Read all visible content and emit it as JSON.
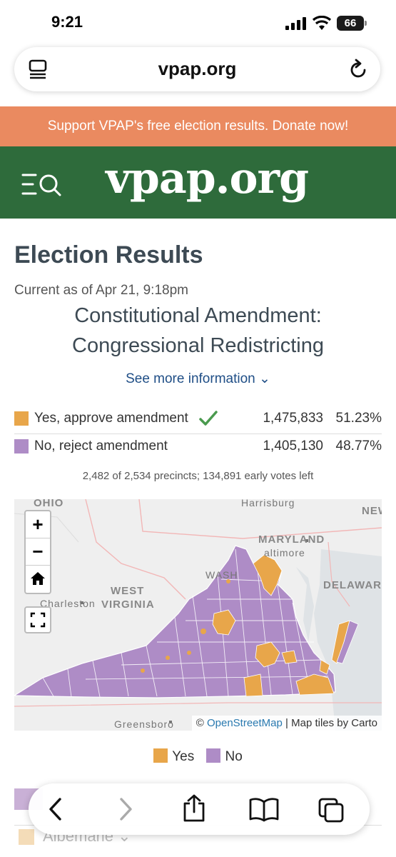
{
  "status_bar": {
    "time": "9:21",
    "battery": "66"
  },
  "browser": {
    "url": "vpap.org"
  },
  "banner": {
    "text": "Support VPAP's free election results. Donate now!"
  },
  "site": {
    "logo": "vpap.org"
  },
  "page": {
    "heading": "Election Results",
    "as_of": "Current as of Apr 21, 9:18pm",
    "race_title_line1": "Constitutional Amendment:",
    "race_title_line2": "Congressional Redistricting",
    "see_more": "See more information ⌄"
  },
  "results": [
    {
      "label": "Yes, approve amendment",
      "votes": "1,475,833",
      "pct": "51.23%",
      "color": "#e8a64a",
      "winner": true
    },
    {
      "label": "No, reject amendment",
      "votes": "1,405,130",
      "pct": "48.77%",
      "color": "#ae8cc6",
      "winner": false
    }
  ],
  "precincts_text": "2,482 of 2,534 precincts; 134,891 early votes left",
  "map": {
    "labels": {
      "ohio": "OHIO",
      "harrisburg": "Harrisburg",
      "new": "NEW",
      "maryland": "MARYLAND",
      "baltimore": "altimore",
      "delaware": "DELAWARE",
      "west_virginia_1": "WEST",
      "west_virginia_2": "VIRGINIA",
      "charleston": "Charleston",
      "washington": "WASH",
      "greensboro": "Greensboro"
    },
    "controls": {
      "zoom_in": "+",
      "zoom_out": "−"
    },
    "attribution_prefix": "© ",
    "attribution_link": "OpenStreetMap",
    "attribution_suffix": " | Map tiles by Carto"
  },
  "legend": {
    "yes": "Yes",
    "no": "No",
    "yes_color": "#e8a64a",
    "no_color": "#ae8cc6"
  },
  "below": {
    "locality": "Albemarle ⌄"
  }
}
